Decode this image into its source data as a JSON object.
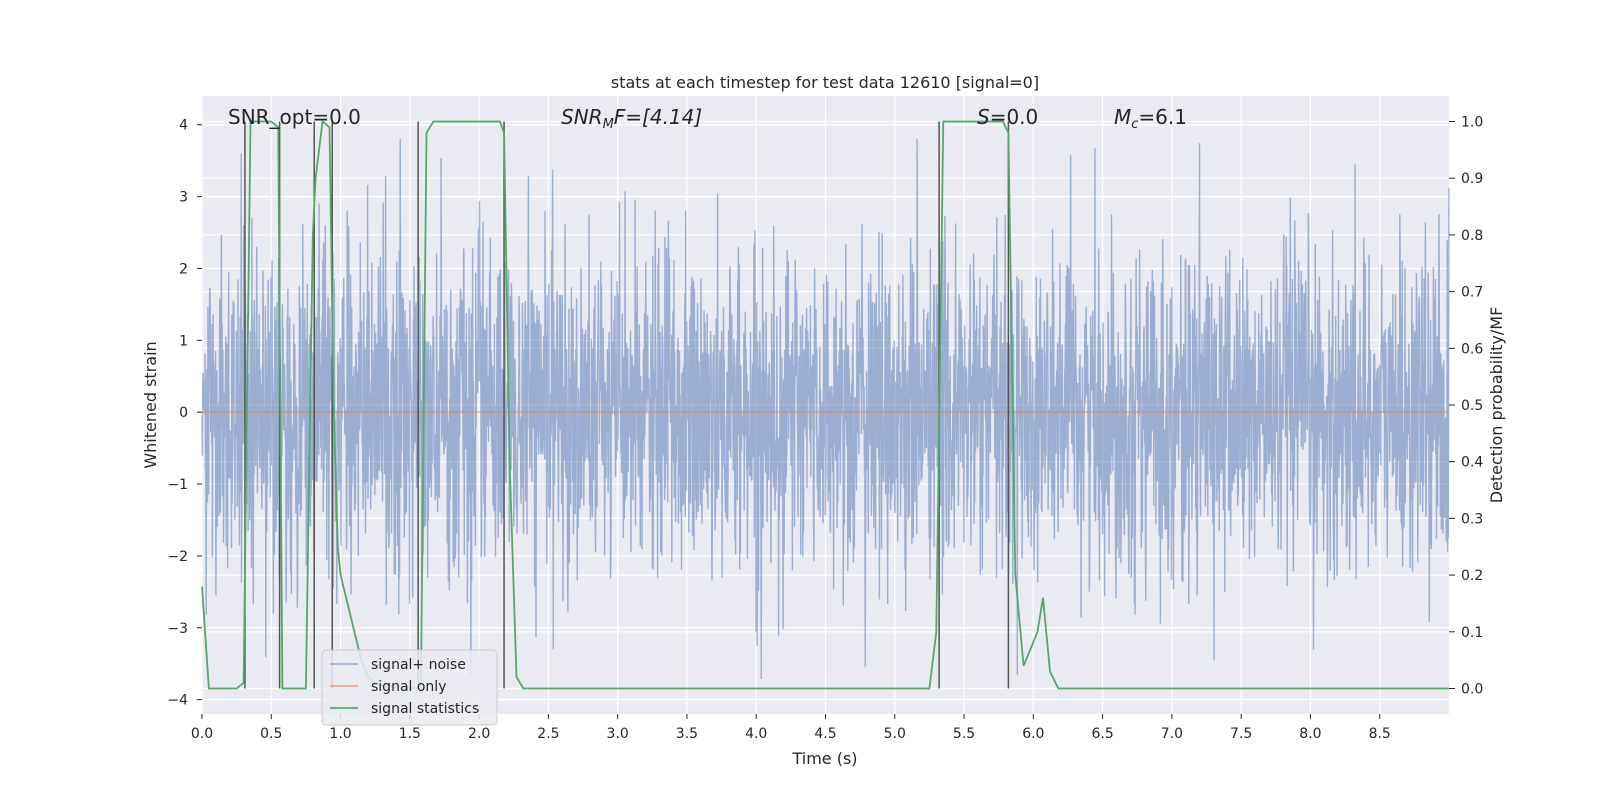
{
  "chart_data": {
    "type": "line",
    "title": "stats at each timestep for test data 12610 [signal=0]",
    "xlabel": "Time (s)",
    "ylabel": "Whitened strain",
    "ylabel_right": "Detection probability/MF",
    "xlim": [
      0.0,
      9.0
    ],
    "ylim": [
      -4.2,
      4.4
    ],
    "ylim_right": [
      -0.045,
      1.045
    ],
    "x_ticks": [
      "0.0",
      "0.5",
      "1.0",
      "1.5",
      "2.0",
      "2.5",
      "3.0",
      "3.5",
      "4.0",
      "4.5",
      "5.0",
      "5.5",
      "6.0",
      "6.5",
      "7.0",
      "7.5",
      "8.0",
      "8.5"
    ],
    "y_ticks": [
      "4",
      "3",
      "2",
      "1",
      "0",
      "−1",
      "−2",
      "−3",
      "−4"
    ],
    "y_ticks_right": [
      "1.0",
      "0.9",
      "0.8",
      "0.7",
      "0.6",
      "0.5",
      "0.4",
      "0.3",
      "0.2",
      "0.1",
      "0.0"
    ],
    "grid": true,
    "legend_position": "lower-left",
    "colors": {
      "noise": "#4c72b0",
      "signal_only": "#dd8452",
      "statistics": "#55a868",
      "threshold": "#555555",
      "background": "#eaeaf2"
    },
    "annotations": {
      "snr_opt": "SNR_opt=0.0",
      "snr_mf_main": "SNR",
      "snr_mf_sub": "M",
      "snr_mf_rest": "F=[4.14]",
      "s_main": "S",
      "s_rest": "=0.0",
      "mc_main": "M",
      "mc_sub": "c",
      "mc_rest": "=6.1"
    },
    "series": [
      {
        "name": "signal+ noise",
        "description_only": false
      },
      {
        "name": "signal only",
        "x": [
          0.0,
          9.0
        ],
        "y": [
          0.0,
          0.0
        ]
      },
      {
        "name": "signal statistics",
        "x": [
          0.0,
          0.05,
          0.1,
          0.15,
          0.2,
          0.25,
          0.3,
          0.35,
          0.38,
          0.4,
          0.45,
          0.5,
          0.55,
          0.58,
          0.6,
          0.65,
          0.7,
          0.75,
          0.8,
          0.82,
          0.87,
          0.92,
          0.95,
          0.98,
          1.0,
          1.05,
          1.1,
          1.15,
          1.2,
          1.25,
          1.3,
          1.35,
          1.4,
          1.45,
          1.5,
          1.55,
          1.58,
          1.62,
          1.67,
          1.75,
          1.85,
          2.0,
          2.1,
          2.15,
          2.18,
          2.22,
          2.27,
          2.32,
          2.5,
          3.0,
          3.5,
          4.0,
          4.5,
          5.0,
          5.25,
          5.3,
          5.35,
          5.5,
          5.7,
          5.78,
          5.82,
          5.87,
          5.93,
          5.98,
          6.03,
          6.07,
          6.12,
          6.18,
          6.3,
          7.0,
          8.0,
          9.0
        ],
        "y": [
          0.18,
          0.0,
          0.0,
          0.0,
          0.0,
          0.0,
          0.01,
          1.0,
          1.0,
          1.0,
          1.0,
          1.0,
          0.99,
          0.0,
          0.0,
          0.0,
          0.0,
          0.0,
          0.8,
          0.9,
          1.0,
          0.99,
          0.5,
          0.25,
          0.2,
          0.15,
          0.1,
          0.05,
          0.02,
          0.01,
          0.005,
          0.003,
          0.002,
          0.001,
          0.001,
          0.0,
          0.0,
          0.98,
          1.0,
          1.0,
          1.0,
          1.0,
          1.0,
          1.0,
          0.98,
          0.4,
          0.02,
          0.0,
          0.0,
          0.0,
          0.0,
          0.0,
          0.0,
          0.0,
          0.0,
          0.1,
          1.0,
          1.0,
          1.0,
          1.0,
          0.98,
          0.2,
          0.04,
          0.07,
          0.1,
          0.16,
          0.03,
          0.0,
          0.0,
          0.0,
          0.0,
          0.0
        ]
      }
    ],
    "threshold_lines_x": [
      0.31,
      0.56,
      0.81,
      0.94,
      1.56,
      2.18,
      5.32,
      5.82
    ]
  }
}
